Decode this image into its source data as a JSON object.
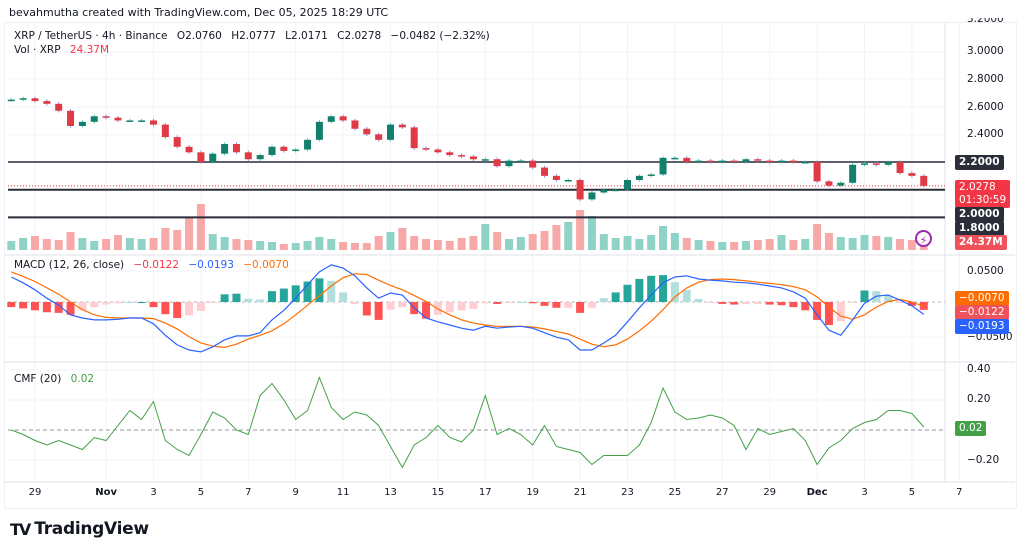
{
  "credit": "bevahmutha created with TradingView.com, Dec 05, 2025 18:29 UTC",
  "symbol": {
    "title": "XRP / TetherUS · 4h · Binance",
    "open": "O2.0760",
    "high": "H2.0777",
    "low": "L2.0171",
    "close": "C2.0278",
    "change": "−0.0482 (−2.32%)",
    "vol_label": "Vol · XRP",
    "vol_value": "24.37M"
  },
  "macd_legend": {
    "label": "MACD (12, 26, close)",
    "hist": "−0.0122",
    "macd": "−0.0193",
    "signal": "−0.0070"
  },
  "cmf_legend": {
    "label": "CMF (20)",
    "value": "0.02"
  },
  "price_axis": {
    "ticks": [
      "3.2000",
      "3.0000",
      "2.8000",
      "2.6000",
      "2.4000"
    ],
    "level_2_2": "2.2000",
    "level_2_0": "2.0000",
    "level_1_8": "1.8000",
    "current_price": "2.0278",
    "countdown": "01:30:59",
    "volume_tag": "24.37M"
  },
  "macd_axis": {
    "ticks": [
      "0.0500",
      "−0.0500"
    ],
    "signal_tag": "−0.0070",
    "hist_tag": "−0.0122",
    "macd_tag": "−0.0193"
  },
  "cmf_axis": {
    "ticks": [
      "0.40",
      "0.20",
      "−0.20"
    ],
    "value_tag": "0.02"
  },
  "time_axis": [
    {
      "date": "2025-10-29",
      "label": "29"
    },
    {
      "date": "2025-11-01",
      "label": "Nov"
    },
    {
      "date": "2025-11-03",
      "label": "3"
    },
    {
      "date": "2025-11-05",
      "label": "5"
    },
    {
      "date": "2025-11-07",
      "label": "7"
    },
    {
      "date": "2025-11-09",
      "label": "9"
    },
    {
      "date": "2025-11-11",
      "label": "11"
    },
    {
      "date": "2025-11-13",
      "label": "13"
    },
    {
      "date": "2025-11-15",
      "label": "15"
    },
    {
      "date": "2025-11-17",
      "label": "17"
    },
    {
      "date": "2025-11-19",
      "label": "19"
    },
    {
      "date": "2025-11-21",
      "label": "21"
    },
    {
      "date": "2025-11-23",
      "label": "23"
    },
    {
      "date": "2025-11-25",
      "label": "25"
    },
    {
      "date": "2025-11-27",
      "label": "27"
    },
    {
      "date": "2025-11-29",
      "label": "29"
    },
    {
      "date": "2025-12-01",
      "label": "Dec"
    },
    {
      "date": "2025-12-03",
      "label": "3"
    },
    {
      "date": "2025-12-05",
      "label": "5"
    },
    {
      "date": "2025-12-07",
      "label": "7"
    }
  ],
  "brand": "TradingView",
  "colors": {
    "up": "#12806c",
    "down": "#e03a45",
    "vol_up": "#8fd3c7",
    "vol_down": "#f7a9a7",
    "macd": "#2962ff",
    "signal": "#ff6d00",
    "cmf": "#43a047",
    "level": "#2a2e39",
    "level_2_2": "#5d606b"
  },
  "chart_data": [
    {
      "type": "candlestick",
      "title": "XRP / TetherUS · 4h · Binance",
      "start": "2025-10-28T00:00",
      "sample_interval": "12h",
      "ylim": [
        1.6,
        3.2
      ],
      "levels": [
        2.2,
        2.0,
        1.8
      ],
      "current": 2.0278,
      "close": [
        2.65,
        2.66,
        2.64,
        2.62,
        2.57,
        2.46,
        2.49,
        2.53,
        2.52,
        2.5,
        2.5,
        2.5,
        2.47,
        2.38,
        2.31,
        2.27,
        2.2,
        2.26,
        2.33,
        2.27,
        2.22,
        2.25,
        2.31,
        2.28,
        2.29,
        2.36,
        2.49,
        2.53,
        2.5,
        2.44,
        2.4,
        2.36,
        2.47,
        2.45,
        2.3,
        2.29,
        2.27,
        2.25,
        2.24,
        2.22,
        2.22,
        2.17,
        2.21,
        2.21,
        2.16,
        2.1,
        2.07,
        2.07,
        1.93,
        1.98,
        2.0,
        2.0,
        2.07,
        2.1,
        2.11,
        2.23,
        2.23,
        2.2,
        2.21,
        2.2,
        2.21,
        2.2,
        2.22,
        2.21,
        2.2,
        2.21,
        2.2,
        2.2,
        2.06,
        2.03,
        2.05,
        2.18,
        2.19,
        2.18,
        2.2,
        2.12,
        2.1,
        2.0278
      ],
      "volume_m": [
        45,
        60,
        70,
        55,
        50,
        90,
        60,
        45,
        55,
        75,
        60,
        55,
        60,
        110,
        100,
        160,
        230,
        80,
        65,
        55,
        50,
        45,
        40,
        30,
        35,
        45,
        65,
        55,
        40,
        35,
        35,
        70,
        90,
        110,
        70,
        55,
        50,
        45,
        60,
        70,
        130,
        90,
        55,
        65,
        80,
        95,
        125,
        140,
        200,
        170,
        80,
        60,
        70,
        55,
        75,
        120,
        85,
        60,
        50,
        45,
        40,
        40,
        45,
        50,
        55,
        75,
        50,
        55,
        130,
        85,
        65,
        60,
        75,
        70,
        65,
        55,
        50,
        24.37
      ]
    },
    {
      "type": "line",
      "title": "MACD (12, 26, close)",
      "ylim": [
        -0.09,
        0.065
      ],
      "series": [
        {
          "name": "MACD",
          "values": [
            0.039,
            0.03,
            0.019,
            0.006,
            -0.005,
            -0.02,
            -0.025,
            -0.028,
            -0.028,
            -0.027,
            -0.025,
            -0.025,
            -0.034,
            -0.052,
            -0.067,
            -0.075,
            -0.078,
            -0.07,
            -0.059,
            -0.053,
            -0.053,
            -0.048,
            -0.028,
            -0.013,
            0.006,
            0.027,
            0.047,
            0.058,
            0.053,
            0.041,
            0.022,
            0.006,
            0.014,
            0.011,
            -0.009,
            -0.025,
            -0.031,
            -0.036,
            -0.041,
            -0.044,
            -0.038,
            -0.041,
            -0.039,
            -0.038,
            -0.041,
            -0.048,
            -0.055,
            -0.059,
            -0.075,
            -0.075,
            -0.064,
            -0.052,
            -0.031,
            -0.009,
            0.011,
            0.03,
            0.039,
            0.041,
            0.036,
            0.034,
            0.033,
            0.031,
            0.03,
            0.028,
            0.025,
            0.022,
            0.016,
            0.006,
            -0.02,
            -0.044,
            -0.052,
            -0.028,
            -0.002,
            0.009,
            0.011,
            0.003,
            -0.006,
            -0.0193
          ]
        },
        {
          "name": "Signal",
          "values": [
            0.047,
            0.04,
            0.032,
            0.022,
            0.012,
            0.0,
            -0.012,
            -0.02,
            -0.024,
            -0.025,
            -0.025,
            -0.025,
            -0.026,
            -0.033,
            -0.042,
            -0.054,
            -0.064,
            -0.069,
            -0.071,
            -0.066,
            -0.058,
            -0.052,
            -0.045,
            -0.034,
            -0.02,
            -0.005,
            0.01,
            0.025,
            0.038,
            0.044,
            0.043,
            0.034,
            0.026,
            0.019,
            0.01,
            0.001,
            -0.011,
            -0.02,
            -0.028,
            -0.033,
            -0.036,
            -0.038,
            -0.038,
            -0.038,
            -0.039,
            -0.042,
            -0.046,
            -0.05,
            -0.058,
            -0.066,
            -0.07,
            -0.067,
            -0.058,
            -0.045,
            -0.03,
            -0.012,
            0.008,
            0.022,
            0.031,
            0.035,
            0.036,
            0.035,
            0.033,
            0.031,
            0.029,
            0.027,
            0.024,
            0.019,
            0.008,
            -0.008,
            -0.022,
            -0.027,
            -0.02,
            -0.008,
            0.001,
            0.004,
            0.0,
            -0.007
          ]
        }
      ]
    },
    {
      "type": "line",
      "title": "CMF (20)",
      "ylim": [
        -0.3,
        0.45
      ],
      "values": [
        0.0,
        -0.03,
        -0.07,
        -0.1,
        -0.07,
        -0.1,
        -0.13,
        -0.05,
        -0.07,
        0.03,
        0.13,
        0.07,
        0.19,
        -0.07,
        -0.13,
        -0.17,
        -0.03,
        0.12,
        0.08,
        0.0,
        -0.03,
        0.23,
        0.31,
        0.2,
        0.07,
        0.13,
        0.35,
        0.15,
        0.07,
        0.12,
        0.1,
        0.03,
        -0.11,
        -0.25,
        -0.1,
        -0.05,
        0.03,
        -0.05,
        -0.08,
        0.0,
        0.23,
        -0.03,
        0.01,
        -0.03,
        -0.1,
        0.03,
        -0.11,
        -0.13,
        -0.15,
        -0.23,
        -0.17,
        -0.17,
        -0.17,
        -0.1,
        0.05,
        0.28,
        0.12,
        0.07,
        0.08,
        0.1,
        0.08,
        0.03,
        -0.13,
        0.01,
        -0.03,
        -0.01,
        0.01,
        -0.07,
        -0.23,
        -0.12,
        -0.07,
        0.01,
        0.05,
        0.07,
        0.13,
        0.13,
        0.11,
        0.02
      ]
    }
  ]
}
